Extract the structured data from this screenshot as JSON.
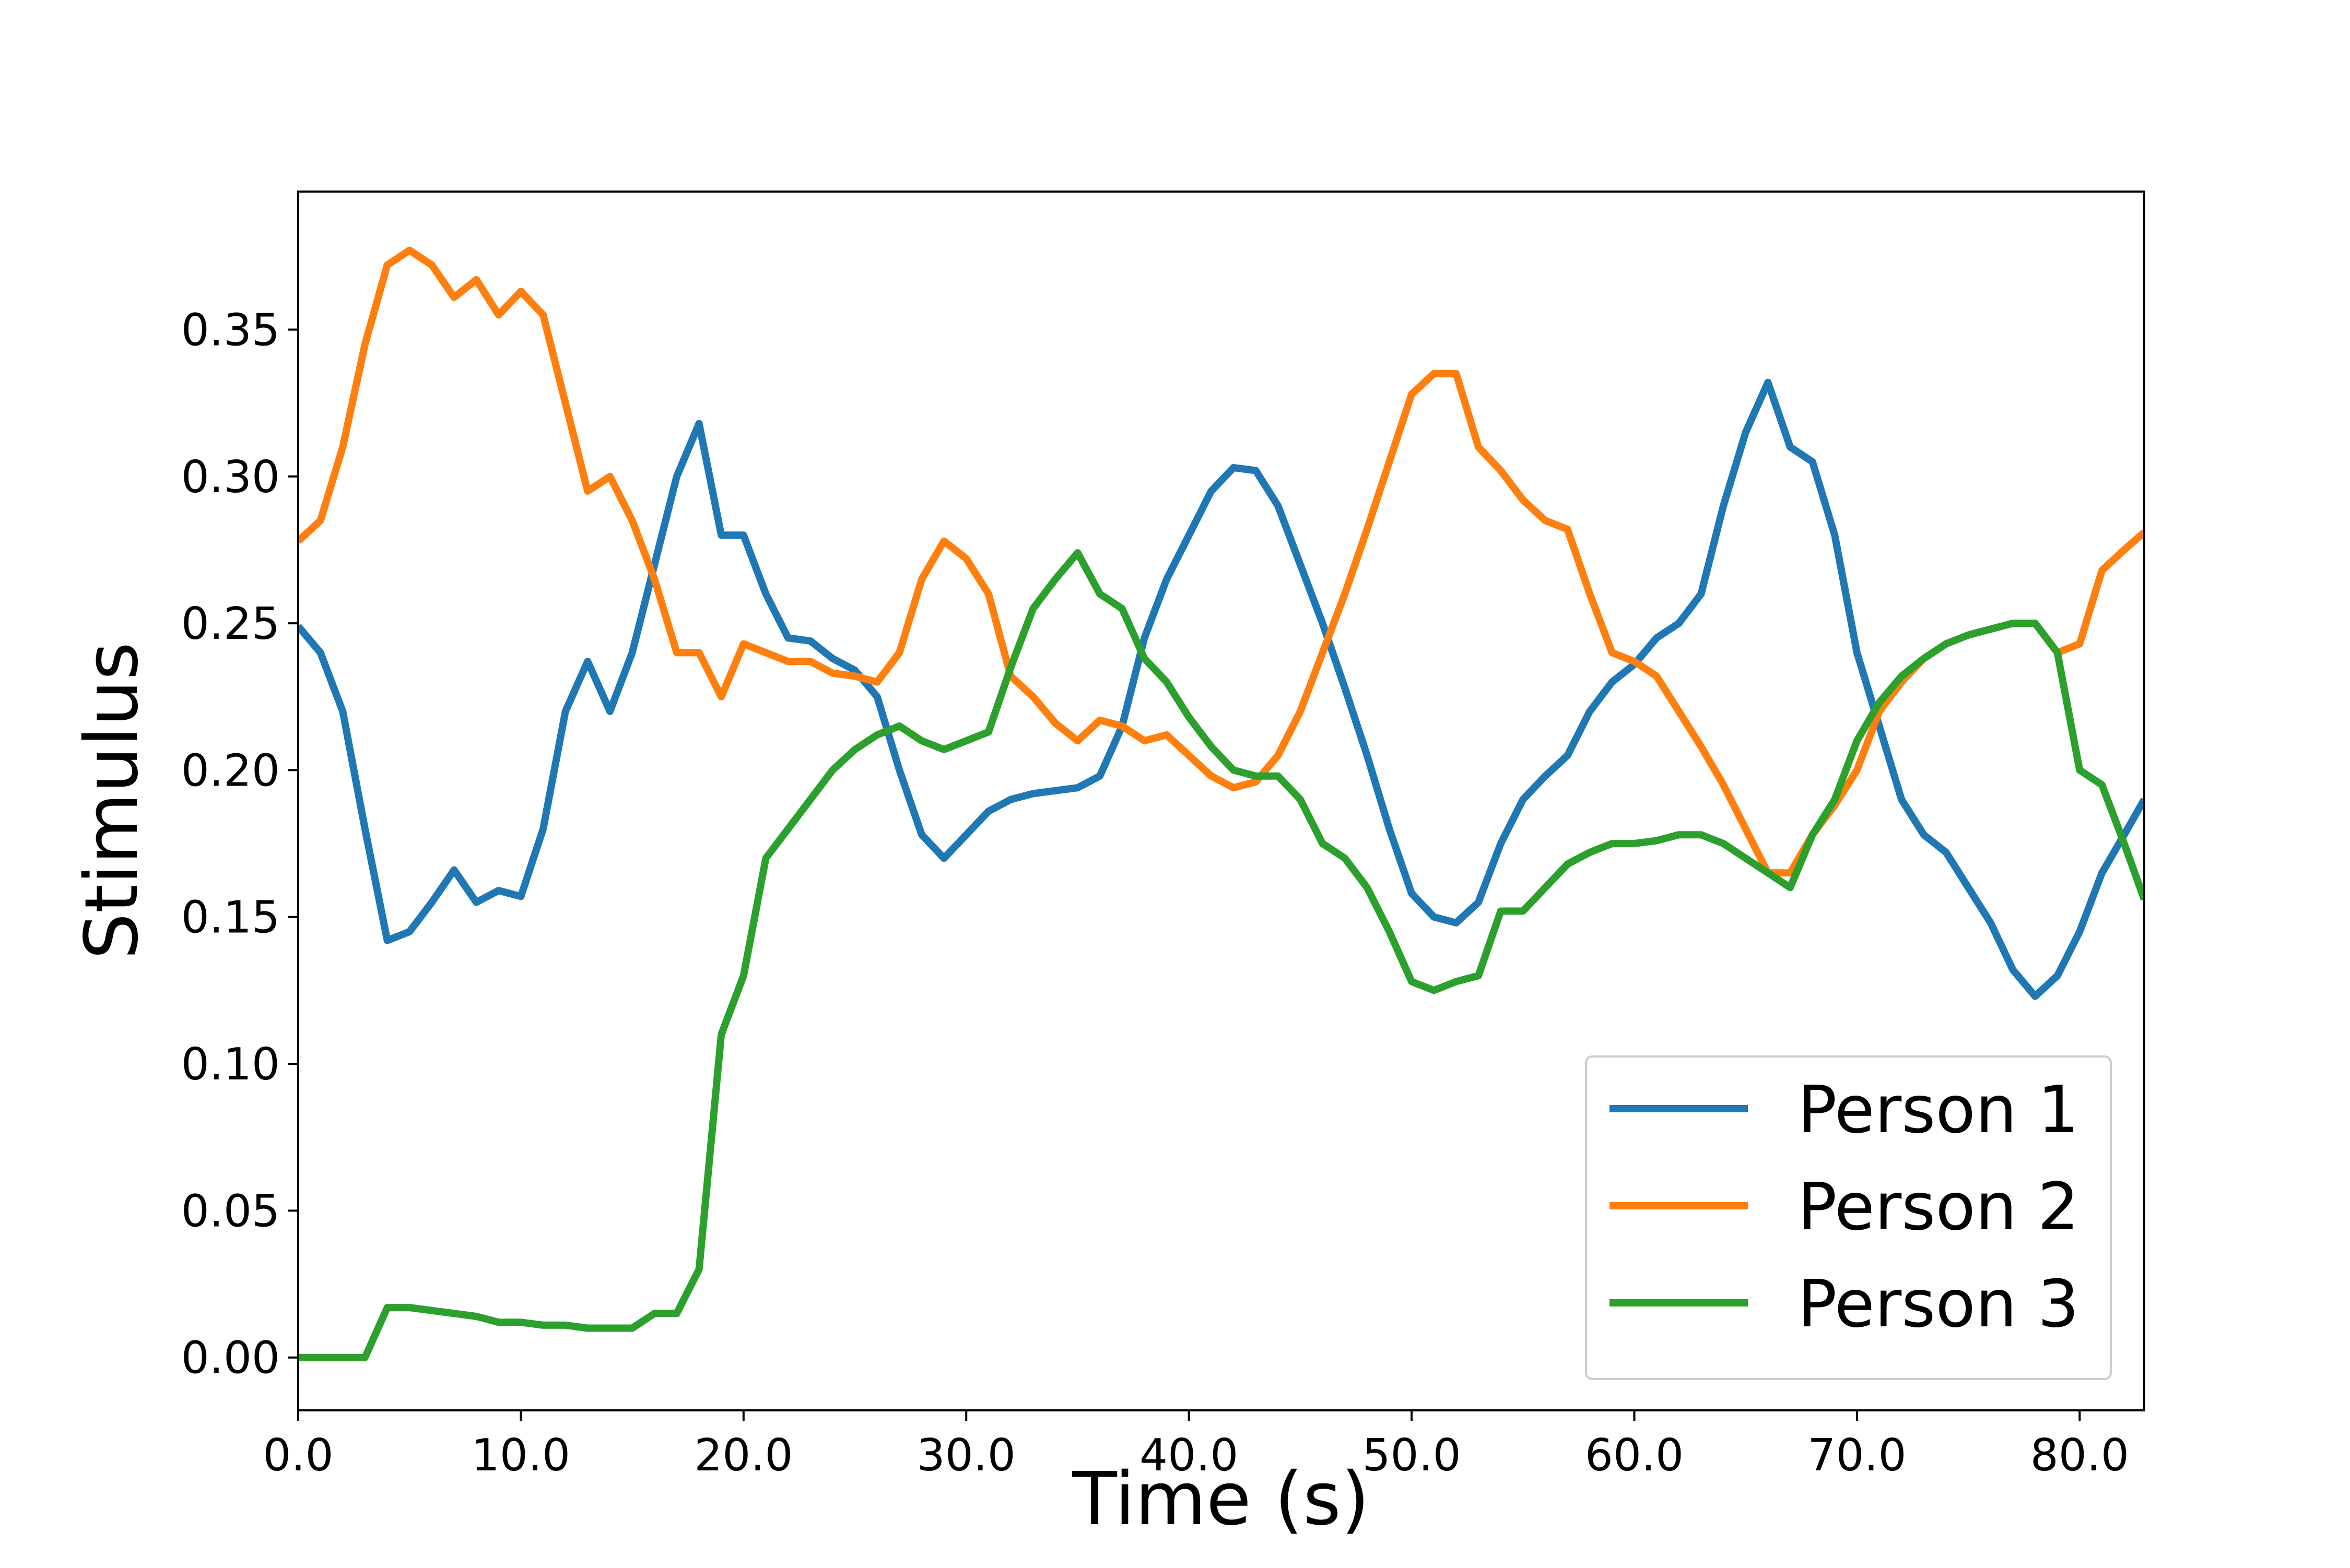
{
  "chart_data": {
    "type": "line",
    "xlabel": "Time (s)",
    "ylabel": "Stimulus",
    "x": [
      0,
      1,
      2,
      3,
      4,
      5,
      6,
      7,
      8,
      9,
      10,
      11,
      12,
      13,
      14,
      15,
      16,
      17,
      18,
      19,
      20,
      21,
      22,
      23,
      24,
      25,
      26,
      27,
      28,
      29,
      30,
      31,
      32,
      33,
      34,
      35,
      36,
      37,
      38,
      39,
      40,
      41,
      42,
      43,
      44,
      45,
      46,
      47,
      48,
      49,
      50,
      51,
      52,
      53,
      54,
      55,
      56,
      57,
      58,
      59,
      60,
      61,
      62,
      63,
      64,
      65,
      66,
      67,
      68,
      69,
      70,
      71,
      72,
      73,
      74,
      75,
      76,
      77,
      78,
      79,
      80,
      81,
      82,
      82.9
    ],
    "series": [
      {
        "name": "Person 1",
        "color": "#1f77b4",
        "values": [
          0.249,
          0.24,
          0.22,
          0.18,
          0.142,
          0.145,
          0.155,
          0.166,
          0.155,
          0.159,
          0.157,
          0.18,
          0.22,
          0.237,
          0.22,
          0.24,
          0.27,
          0.3,
          0.318,
          0.28,
          0.28,
          0.26,
          0.245,
          0.244,
          0.238,
          0.234,
          0.225,
          0.2,
          0.178,
          0.17,
          0.178,
          0.186,
          0.19,
          0.192,
          0.193,
          0.194,
          0.198,
          0.215,
          0.245,
          0.265,
          0.28,
          0.295,
          0.303,
          0.302,
          0.29,
          0.27,
          0.25,
          0.228,
          0.205,
          0.18,
          0.158,
          0.15,
          0.148,
          0.155,
          0.175,
          0.19,
          0.198,
          0.205,
          0.22,
          0.23,
          0.236,
          0.245,
          0.25,
          0.26,
          0.29,
          0.315,
          0.332,
          0.31,
          0.305,
          0.28,
          0.24,
          0.215,
          0.19,
          0.178,
          0.172,
          0.16,
          0.148,
          0.132,
          0.123,
          0.13,
          0.145,
          0.165,
          0.178,
          0.19
        ]
      },
      {
        "name": "Person 2",
        "color": "#ff7f0e",
        "values": [
          0.278,
          0.285,
          0.31,
          0.345,
          0.372,
          0.377,
          0.372,
          0.361,
          0.367,
          0.355,
          0.363,
          0.355,
          0.325,
          0.295,
          0.3,
          0.285,
          0.265,
          0.24,
          0.24,
          0.225,
          0.243,
          0.24,
          0.237,
          0.237,
          0.233,
          0.232,
          0.23,
          0.24,
          0.265,
          0.278,
          0.272,
          0.26,
          0.232,
          0.225,
          0.216,
          0.21,
          0.217,
          0.215,
          0.21,
          0.212,
          0.205,
          0.198,
          0.194,
          0.196,
          0.205,
          0.22,
          0.24,
          0.26,
          0.282,
          0.305,
          0.328,
          0.335,
          0.335,
          0.31,
          0.302,
          0.292,
          0.285,
          0.282,
          0.26,
          0.24,
          0.237,
          0.232,
          0.22,
          0.208,
          0.195,
          0.18,
          0.165,
          0.165,
          0.178,
          0.188,
          0.2,
          0.22,
          0.23,
          0.238,
          0.243,
          0.246,
          0.248,
          0.25,
          0.25,
          0.24,
          0.243,
          0.268,
          0.275,
          0.281
        ]
      },
      {
        "name": "Person 3",
        "color": "#2ca02c",
        "values": [
          0,
          0,
          0,
          0,
          0.017,
          0.017,
          0.016,
          0.015,
          0.014,
          0.012,
          0.012,
          0.011,
          0.011,
          0.01,
          0.01,
          0.01,
          0.015,
          0.015,
          0.03,
          0.11,
          0.13,
          0.17,
          0.18,
          0.19,
          0.2,
          0.207,
          0.212,
          0.215,
          0.21,
          0.207,
          0.21,
          0.213,
          0.235,
          0.255,
          0.265,
          0.274,
          0.26,
          0.255,
          0.238,
          0.23,
          0.218,
          0.208,
          0.2,
          0.198,
          0.198,
          0.19,
          0.175,
          0.17,
          0.16,
          0.145,
          0.128,
          0.125,
          0.128,
          0.13,
          0.152,
          0.152,
          0.16,
          0.168,
          0.172,
          0.175,
          0.175,
          0.176,
          0.178,
          0.178,
          0.175,
          0.17,
          0.165,
          0.16,
          0.178,
          0.19,
          0.21,
          0.223,
          0.232,
          0.238,
          0.243,
          0.246,
          0.248,
          0.25,
          0.25,
          0.24,
          0.2,
          0.195,
          0.175,
          0.156
        ]
      }
    ],
    "xlim": [
      0,
      82.9
    ],
    "ylim": [
      -0.018,
      0.397
    ],
    "xticks": [
      {
        "value": 0,
        "label": "0.0"
      },
      {
        "value": 10,
        "label": "10.0"
      },
      {
        "value": 20,
        "label": "20.0"
      },
      {
        "value": 30,
        "label": "30.0"
      },
      {
        "value": 40,
        "label": "40.0"
      },
      {
        "value": 50,
        "label": "50.0"
      },
      {
        "value": 60,
        "label": "60.0"
      },
      {
        "value": 70,
        "label": "70.0"
      },
      {
        "value": 80,
        "label": "80.0"
      }
    ],
    "yticks": [
      {
        "value": 0,
        "label": "0.00"
      },
      {
        "value": 0.05,
        "label": "0.05"
      },
      {
        "value": 0.1,
        "label": "0.10"
      },
      {
        "value": 0.15,
        "label": "0.15"
      },
      {
        "value": 0.2,
        "label": "0.20"
      },
      {
        "value": 0.25,
        "label": "0.25"
      },
      {
        "value": 0.3,
        "label": "0.30"
      },
      {
        "value": 0.35,
        "label": "0.35"
      }
    ],
    "grid": false,
    "legend": "lower right"
  }
}
